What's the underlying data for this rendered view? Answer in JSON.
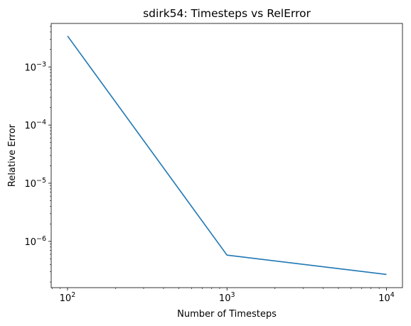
{
  "chart_data": {
    "type": "line",
    "title": "sdirk54: Timesteps vs RelError",
    "xlabel": "Number of Timesteps",
    "ylabel": "Relative Error",
    "xscale": "log",
    "yscale": "log",
    "xlim": [
      79,
      12600
    ],
    "ylim": [
      1.6e-07,
      0.0056
    ],
    "grid": false,
    "x": [
      100,
      1000,
      10000
    ],
    "series": [
      {
        "name": "",
        "color": "#1f77b4",
        "values": [
          0.0034,
          5.8e-07,
          2.7e-07
        ]
      }
    ],
    "xticks": [
      {
        "mantissa": "10",
        "exponent": "2"
      },
      {
        "mantissa": "10",
        "exponent": "3"
      },
      {
        "mantissa": "10",
        "exponent": "4"
      }
    ],
    "yticks": [
      {
        "mantissa": "10",
        "exponent": "−3"
      },
      {
        "mantissa": "10",
        "exponent": "−4"
      },
      {
        "mantissa": "10",
        "exponent": "−5"
      },
      {
        "mantissa": "10",
        "exponent": "−6"
      }
    ]
  }
}
